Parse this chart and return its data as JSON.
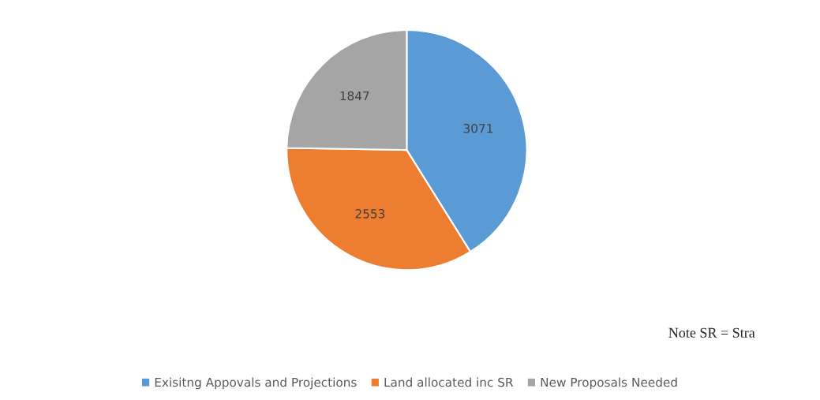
{
  "chart_data": {
    "type": "pie",
    "categories": [
      "Exisitng Appovals and Projections",
      "Land allocated inc SR",
      "New Proposals Needed"
    ],
    "values": [
      3071,
      2553,
      1847
    ],
    "colors": [
      "#5b9bd5",
      "#ed7d31",
      "#a5a5a5"
    ],
    "data_labels": true,
    "legend": "bottom",
    "annotations": [
      "Note SR = Stra"
    ]
  }
}
